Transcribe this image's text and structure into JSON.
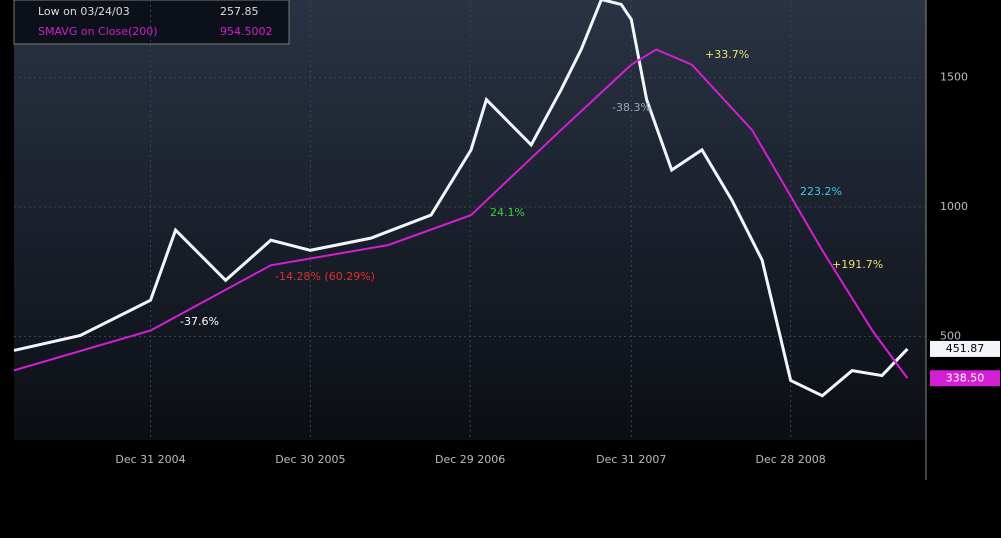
{
  "chart_data": {
    "type": "line",
    "stats": [
      {
        "label": "Low on 03/24/03",
        "value": "257.85"
      }
    ],
    "stat_value_of_series_1": "954.5002",
    "series": [
      {
        "name": "Close",
        "color": "#f2f6fb",
        "x": [
          "2004-02-24",
          "2004-07-24",
          "2004-12-31",
          "2005-02-26",
          "2005-06-20",
          "2005-10-01",
          "2005-12-30",
          "2006-05-17",
          "2006-10-01",
          "2006-12-31",
          "2007-02-04",
          "2007-05-17",
          "2007-07-24",
          "2007-09-08",
          "2007-10-24",
          "2007-12-08",
          "2007-12-31",
          "2008-02-04",
          "2008-04-01",
          "2008-06-09",
          "2008-08-16",
          "2008-10-24",
          "2008-12-28",
          "2009-03-10",
          "2009-05-17",
          "2009-07-24",
          "2009-09-20"
        ],
        "values": [
          446,
          504,
          640,
          911,
          717,
          872,
          833,
          880,
          969,
          1221,
          1415,
          1240,
          1453,
          1609,
          1802,
          1783,
          1725,
          1415,
          1143,
          1221,
          1027,
          795,
          330,
          271,
          368,
          349,
          451.87
        ],
        "value_labels": [
          null,
          null,
          null,
          null,
          null,
          null,
          null,
          null,
          null,
          null,
          null,
          null,
          null,
          null,
          null,
          null,
          null,
          null,
          null,
          null,
          null,
          null,
          null,
          null,
          null,
          null,
          "451.87"
        ]
      },
      {
        "name": "SMAVG on Close(200)",
        "color": "#d21fd2",
        "x": [
          "2004-02-24",
          "2004-12-31",
          "2005-10-01",
          "2006-06-25",
          "2006-12-31",
          "2007-07-24",
          "2007-12-31",
          "2008-02-26",
          "2008-05-17",
          "2008-10-01",
          "2009-03-10",
          "2009-07-02",
          "2009-09-20"
        ],
        "values": [
          369,
          523,
          775,
          853,
          969,
          1298,
          1550,
          1609,
          1550,
          1298,
          833,
          523,
          338.5
        ],
        "value_labels": [
          null,
          null,
          null,
          null,
          null,
          null,
          null,
          null,
          null,
          null,
          null,
          null,
          "338.50"
        ]
      }
    ],
    "xlim": [
      "2004-02-24",
      "2009-10-30"
    ],
    "xticks": [
      {
        "value": "2004-12-31",
        "label": "Dec 31 2004"
      },
      {
        "value": "2005-12-30",
        "label": "Dec 30 2005"
      },
      {
        "value": "2006-12-29",
        "label": "Dec 29 2006"
      },
      {
        "value": "2007-12-31",
        "label": "Dec 31 2007"
      },
      {
        "value": "2008-12-28",
        "label": "Dec 28 2008"
      }
    ],
    "ylim": [
      100,
      1800
    ],
    "yticks": [
      500,
      1000,
      1500
    ],
    "grid": true,
    "annotations": [
      {
        "text": "-37.6%",
        "color": "#ffffff"
      },
      {
        "text": "-14.28%   (60.29%)",
        "color": "#e03030"
      },
      {
        "text": "24.1%",
        "color": "#3ccf3c"
      },
      {
        "text": "-38.3%",
        "color": "#9aa5b5"
      },
      {
        "text": "+33.7%",
        "color": "#e8e070"
      },
      {
        "text": "223.2%",
        "color": "#40c8e8"
      },
      {
        "text": "+191.7%",
        "color": "#e8e070"
      }
    ]
  }
}
